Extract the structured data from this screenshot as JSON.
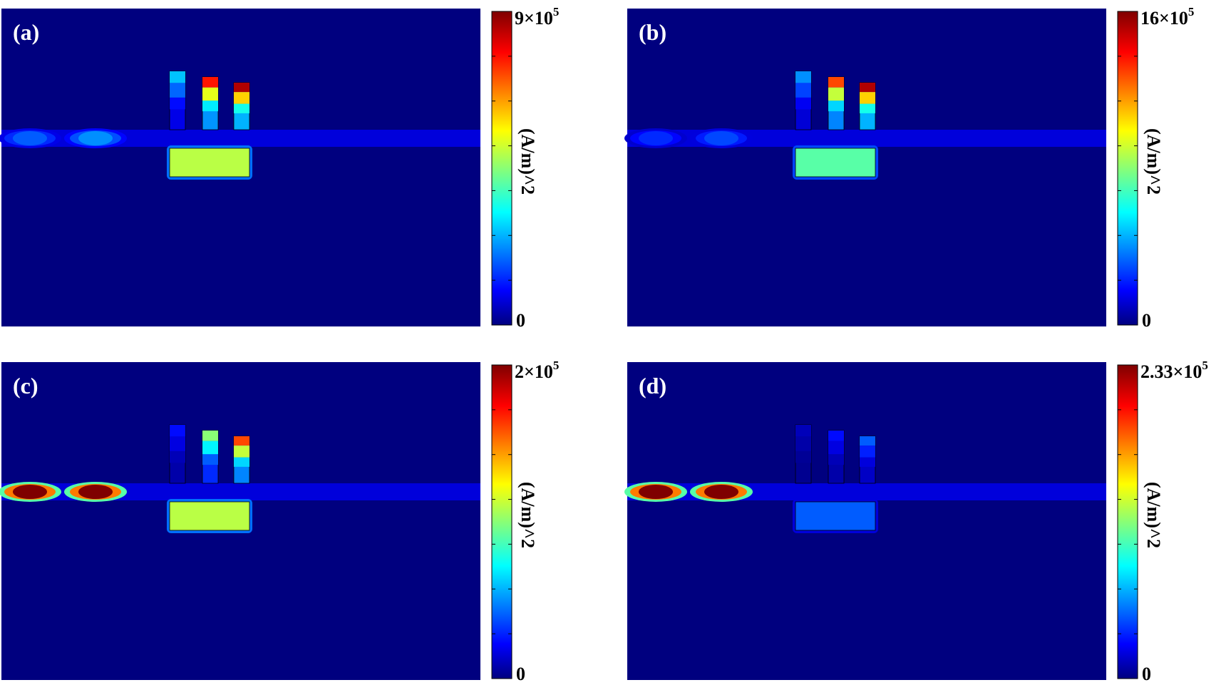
{
  "figure": {
    "colorbar_stops": [
      "#00007f",
      "#0000ff",
      "#00ffff",
      "#ffff00",
      "#ff0000",
      "#7f0000"
    ],
    "background_color": "#00007f",
    "panels": [
      {
        "id": "a",
        "label": "(a)",
        "colorbar": {
          "max_mantissa": "9×10",
          "max_exponent": "5",
          "min": "0",
          "unit": "(A/m)^2",
          "max_value": 900000
        },
        "hotspots": [
          {
            "region": "waveguide-left-1",
            "level": 0.2
          },
          {
            "region": "waveguide-left-2",
            "level": 0.25
          },
          {
            "region": "cavity-bar",
            "level": 0.55
          },
          {
            "region": "pillar-1",
            "level": 0.3
          },
          {
            "region": "pillar-2",
            "level": 0.85
          },
          {
            "region": "pillar-3",
            "level": 0.95
          }
        ]
      },
      {
        "id": "b",
        "label": "(b)",
        "colorbar": {
          "max_mantissa": "16×10",
          "max_exponent": "5",
          "min": "0",
          "unit": "(A/m)^2",
          "max_value": 1600000
        },
        "hotspots": [
          {
            "region": "waveguide-left-1",
            "level": 0.15
          },
          {
            "region": "waveguide-left-2",
            "level": 0.18
          },
          {
            "region": "cavity-bar",
            "level": 0.45
          },
          {
            "region": "pillar-1",
            "level": 0.25
          },
          {
            "region": "pillar-2",
            "level": 0.8
          },
          {
            "region": "pillar-3",
            "level": 0.95
          }
        ]
      },
      {
        "id": "c",
        "label": "(c)",
        "colorbar": {
          "max_mantissa": "2×10",
          "max_exponent": "5",
          "min": "0",
          "unit": "(A/m)^2",
          "max_value": 200000
        },
        "hotspots": [
          {
            "region": "waveguide-left-1",
            "level": 1.0
          },
          {
            "region": "waveguide-left-2",
            "level": 1.0
          },
          {
            "region": "cavity-bar",
            "level": 0.55
          },
          {
            "region": "pillar-1",
            "level": 0.12
          },
          {
            "region": "pillar-2",
            "level": 0.5
          },
          {
            "region": "pillar-3",
            "level": 0.8
          }
        ]
      },
      {
        "id": "d",
        "label": "(d)",
        "colorbar": {
          "max_mantissa": "2.33×10",
          "max_exponent": "5",
          "min": "0",
          "unit": "(A/m)^2",
          "max_value": 233000
        },
        "hotspots": [
          {
            "region": "waveguide-left-1",
            "level": 1.0
          },
          {
            "region": "waveguide-left-2",
            "level": 1.0
          },
          {
            "region": "cavity-bar",
            "level": 0.2
          },
          {
            "region": "pillar-1",
            "level": 0.05
          },
          {
            "region": "pillar-2",
            "level": 0.12
          },
          {
            "region": "pillar-3",
            "level": 0.2
          }
        ]
      }
    ]
  }
}
